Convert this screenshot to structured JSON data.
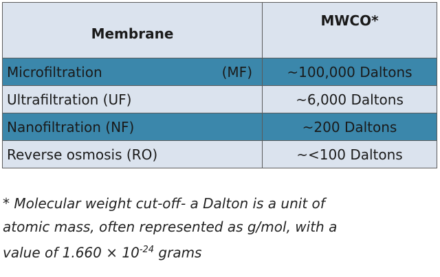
{
  "table": {
    "headers": {
      "membrane": "Membrane",
      "mwco": "MWCO*"
    },
    "rows": [
      {
        "name": "Microfiltration",
        "abbr": "(MF)",
        "value": "~100,000 Daltons",
        "style": "dark"
      },
      {
        "name": "Ultrafiltration (UF)",
        "abbr": "",
        "value": "~6,000 Daltons",
        "style": "light"
      },
      {
        "name": "Nanofiltration (NF)",
        "abbr": "",
        "value": "~200 Daltons",
        "style": "dark"
      },
      {
        "name": "Reverse osmosis (RO)",
        "abbr": "",
        "value": "~<100 Daltons",
        "style": "light"
      }
    ]
  },
  "footnote": {
    "line1": "* Molecular weight cut-off- a Dalton is a unit of",
    "line2": "atomic mass, often represented as g/mol, with a",
    "line3_prefix": "value of 1.660 × 10",
    "line3_exponent": "-24",
    "line3_suffix": " grams"
  }
}
